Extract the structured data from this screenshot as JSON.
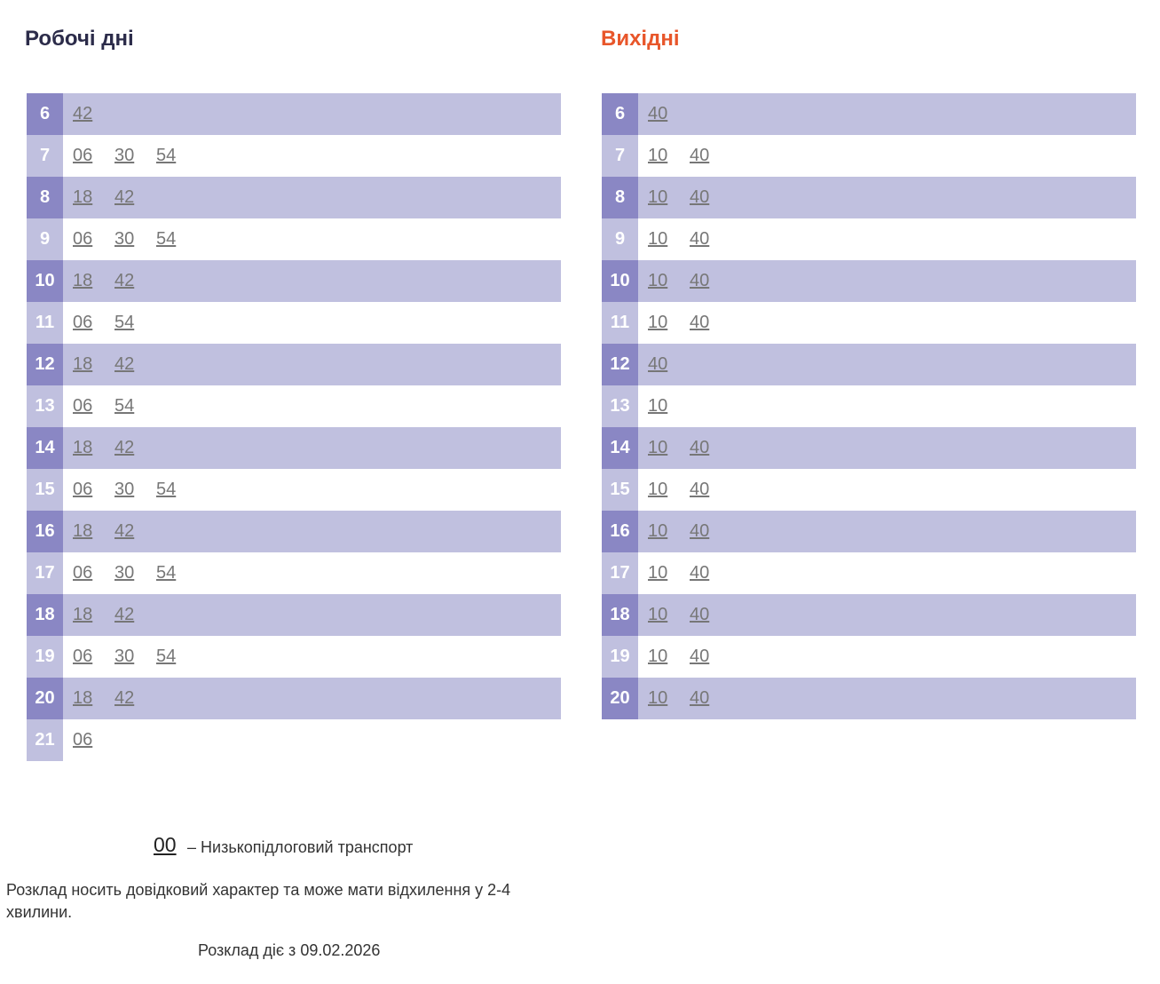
{
  "weekdays": {
    "title": "Робочі дні",
    "rows": [
      {
        "hour": "6",
        "minutes": [
          "42"
        ]
      },
      {
        "hour": "7",
        "minutes": [
          "06",
          "30",
          "54"
        ]
      },
      {
        "hour": "8",
        "minutes": [
          "18",
          "42"
        ]
      },
      {
        "hour": "9",
        "minutes": [
          "06",
          "30",
          "54"
        ]
      },
      {
        "hour": "10",
        "minutes": [
          "18",
          "42"
        ]
      },
      {
        "hour": "11",
        "minutes": [
          "06",
          "54"
        ]
      },
      {
        "hour": "12",
        "minutes": [
          "18",
          "42"
        ]
      },
      {
        "hour": "13",
        "minutes": [
          "06",
          "54"
        ]
      },
      {
        "hour": "14",
        "minutes": [
          "18",
          "42"
        ]
      },
      {
        "hour": "15",
        "minutes": [
          "06",
          "30",
          "54"
        ]
      },
      {
        "hour": "16",
        "minutes": [
          "18",
          "42"
        ]
      },
      {
        "hour": "17",
        "minutes": [
          "06",
          "30",
          "54"
        ]
      },
      {
        "hour": "18",
        "minutes": [
          "18",
          "42"
        ]
      },
      {
        "hour": "19",
        "minutes": [
          "06",
          "30",
          "54"
        ]
      },
      {
        "hour": "20",
        "minutes": [
          "18",
          "42"
        ]
      },
      {
        "hour": "21",
        "minutes": [
          "06"
        ]
      }
    ]
  },
  "weekends": {
    "title": "Вихідні",
    "rows": [
      {
        "hour": "6",
        "minutes": [
          "40"
        ]
      },
      {
        "hour": "7",
        "minutes": [
          "10",
          "40"
        ]
      },
      {
        "hour": "8",
        "minutes": [
          "10",
          "40"
        ]
      },
      {
        "hour": "9",
        "minutes": [
          "10",
          "40"
        ]
      },
      {
        "hour": "10",
        "minutes": [
          "10",
          "40"
        ]
      },
      {
        "hour": "11",
        "minutes": [
          "10",
          "40"
        ]
      },
      {
        "hour": "12",
        "minutes": [
          "40"
        ]
      },
      {
        "hour": "13",
        "minutes": [
          "10"
        ]
      },
      {
        "hour": "14",
        "minutes": [
          "10",
          "40"
        ]
      },
      {
        "hour": "15",
        "minutes": [
          "10",
          "40"
        ]
      },
      {
        "hour": "16",
        "minutes": [
          "10",
          "40"
        ]
      },
      {
        "hour": "17",
        "minutes": [
          "10",
          "40"
        ]
      },
      {
        "hour": "18",
        "minutes": [
          "10",
          "40"
        ]
      },
      {
        "hour": "19",
        "minutes": [
          "10",
          "40"
        ]
      },
      {
        "hour": "20",
        "minutes": [
          "10",
          "40"
        ]
      }
    ]
  },
  "legend": {
    "sample": "00",
    "text": "– Низькопідлоговий транспорт"
  },
  "note": "Розклад носить довідковий характер та може мати відхилення у 2-4 хвилини.",
  "valid_from": "Розклад діє з 09.02.2026"
}
